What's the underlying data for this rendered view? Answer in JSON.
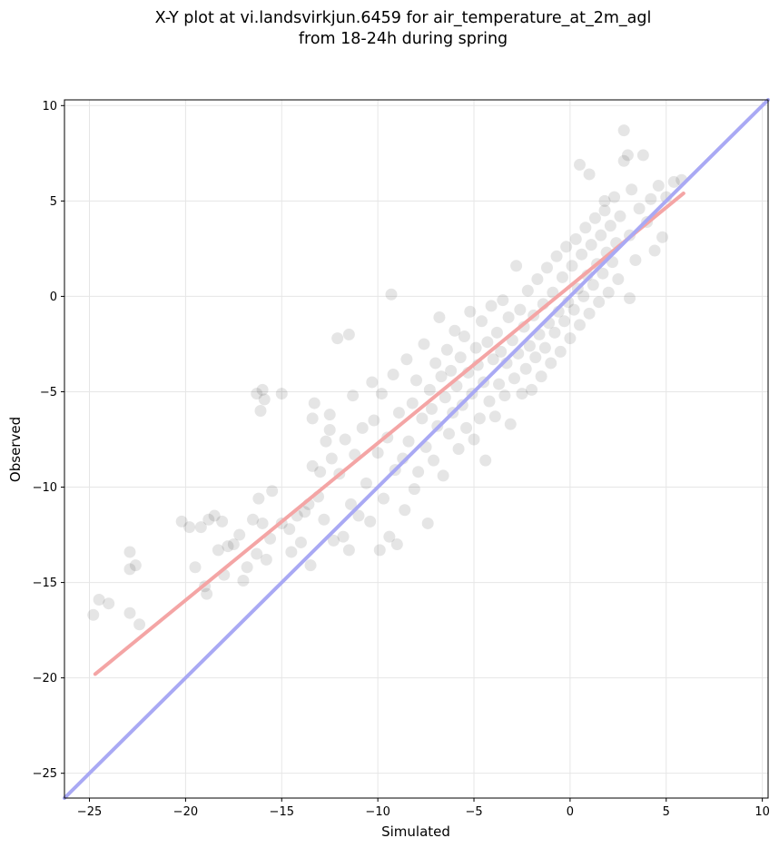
{
  "chart_data": {
    "type": "scatter",
    "title_lines": [
      "X-Y plot at vi.landsvirkjun.6459 for air_temperature_at_2m_agl",
      "from 18-24h during spring"
    ],
    "xlabel": "Simulated",
    "ylabel": "Observed",
    "xlim": [
      -26.3,
      10.3
    ],
    "ylim": [
      -26.3,
      10.3
    ],
    "xticks": [
      -25,
      -20,
      -15,
      -10,
      -5,
      0,
      5,
      10
    ],
    "yticks": [
      -25,
      -20,
      -15,
      -10,
      -5,
      0,
      5,
      10
    ],
    "tick_labels": [
      "−25",
      "−20",
      "−15",
      "−10",
      "−5",
      "0",
      "5",
      "10"
    ],
    "grid": true,
    "series": [
      {
        "kind": "scatter",
        "color": "#000000",
        "points": [
          [
            -24.8,
            -16.7
          ],
          [
            -24.5,
            -15.9
          ],
          [
            -24.0,
            -16.1
          ],
          [
            -22.9,
            -13.4
          ],
          [
            -22.9,
            -14.3
          ],
          [
            -22.9,
            -16.6
          ],
          [
            -22.6,
            -14.1
          ],
          [
            -22.4,
            -17.2
          ],
          [
            -20.2,
            -11.8
          ],
          [
            -19.8,
            -12.1
          ],
          [
            -19.5,
            -14.2
          ],
          [
            -19.2,
            -12.1
          ],
          [
            -19.0,
            -15.2
          ],
          [
            -18.9,
            -15.6
          ],
          [
            -18.8,
            -11.7
          ],
          [
            -18.5,
            -11.5
          ],
          [
            -18.3,
            -13.3
          ],
          [
            -18.1,
            -11.8
          ],
          [
            -18.0,
            -14.6
          ],
          [
            -17.8,
            -13.1
          ],
          [
            -17.5,
            -13.0
          ],
          [
            -17.2,
            -12.5
          ],
          [
            -17.0,
            -14.9
          ],
          [
            -16.8,
            -14.2
          ],
          [
            -16.5,
            -11.7
          ],
          [
            -16.3,
            -13.5
          ],
          [
            -16.2,
            -10.6
          ],
          [
            -16.0,
            -11.9
          ],
          [
            -15.8,
            -13.8
          ],
          [
            -15.6,
            -12.7
          ],
          [
            -15.5,
            -10.2
          ],
          [
            -15.0,
            -11.9
          ],
          [
            -15.0,
            -5.1
          ],
          [
            -16.3,
            -5.1
          ],
          [
            -16.0,
            -4.9
          ],
          [
            -16.1,
            -6.0
          ],
          [
            -15.9,
            -5.4
          ],
          [
            -14.6,
            -12.2
          ],
          [
            -14.5,
            -13.4
          ],
          [
            -14.2,
            -11.5
          ],
          [
            -14.0,
            -12.9
          ],
          [
            -13.8,
            -11.3
          ],
          [
            -13.6,
            -10.9
          ],
          [
            -13.5,
            -14.1
          ],
          [
            -13.4,
            -8.9
          ],
          [
            -13.4,
            -6.4
          ],
          [
            -13.3,
            -5.6
          ],
          [
            -13.1,
            -10.5
          ],
          [
            -13.0,
            -9.2
          ],
          [
            -12.8,
            -11.7
          ],
          [
            -12.7,
            -7.6
          ],
          [
            -12.5,
            -7.0
          ],
          [
            -12.5,
            -6.2
          ],
          [
            -12.4,
            -8.5
          ],
          [
            -12.3,
            -12.8
          ],
          [
            -12.1,
            -2.2
          ],
          [
            -12.0,
            -9.3
          ],
          [
            -11.8,
            -12.6
          ],
          [
            -11.7,
            -7.5
          ],
          [
            -11.5,
            -13.3
          ],
          [
            -11.4,
            -10.9
          ],
          [
            -11.3,
            -5.2
          ],
          [
            -11.2,
            -8.3
          ],
          [
            -11.0,
            -11.5
          ],
          [
            -11.5,
            -2.0
          ],
          [
            -10.8,
            -6.9
          ],
          [
            -10.6,
            -9.8
          ],
          [
            -10.4,
            -11.8
          ],
          [
            -10.3,
            -4.5
          ],
          [
            -10.2,
            -6.5
          ],
          [
            -10.0,
            -8.2
          ],
          [
            -9.9,
            -13.3
          ],
          [
            -9.8,
            -5.1
          ],
          [
            -9.7,
            -10.6
          ],
          [
            -9.5,
            -7.4
          ],
          [
            -9.4,
            -12.6
          ],
          [
            -9.2,
            -4.1
          ],
          [
            -9.1,
            -9.1
          ],
          [
            -9.0,
            -13.0
          ],
          [
            -8.9,
            -6.1
          ],
          [
            -8.7,
            -8.5
          ],
          [
            -8.6,
            -11.2
          ],
          [
            -8.5,
            -3.3
          ],
          [
            -8.4,
            -7.6
          ],
          [
            -8.2,
            -5.6
          ],
          [
            -8.1,
            -10.1
          ],
          [
            -8.0,
            -4.4
          ],
          [
            -7.9,
            -9.2
          ],
          [
            -7.7,
            -6.4
          ],
          [
            -7.6,
            -2.5
          ],
          [
            -7.5,
            -7.9
          ],
          [
            -7.4,
            -11.9
          ],
          [
            -7.3,
            -4.9
          ],
          [
            -7.2,
            -5.9
          ],
          [
            -7.1,
            -8.6
          ],
          [
            -7.0,
            -3.5
          ],
          [
            -6.9,
            -6.8
          ],
          [
            -6.8,
            -1.1
          ],
          [
            -6.7,
            -4.2
          ],
          [
            -6.6,
            -9.4
          ],
          [
            -6.5,
            -5.3
          ],
          [
            -6.4,
            -2.8
          ],
          [
            -6.3,
            -7.2
          ],
          [
            -6.2,
            -3.9
          ],
          [
            -6.1,
            -6.1
          ],
          [
            -6.0,
            -1.8
          ],
          [
            -5.9,
            -4.7
          ],
          [
            -5.8,
            -8.0
          ],
          [
            -5.7,
            -3.2
          ],
          [
            -5.6,
            -5.7
          ],
          [
            -5.5,
            -2.1
          ],
          [
            -5.4,
            -6.9
          ],
          [
            -5.3,
            -4.0
          ],
          [
            -5.2,
            -0.8
          ],
          [
            -5.1,
            -5.1
          ],
          [
            -5.0,
            -7.5
          ],
          [
            -4.9,
            -2.7
          ],
          [
            -4.8,
            -3.6
          ],
          [
            -4.7,
            -6.4
          ],
          [
            -4.6,
            -1.3
          ],
          [
            -4.5,
            -4.5
          ],
          [
            -4.4,
            -8.6
          ],
          [
            -4.3,
            -2.4
          ],
          [
            -4.2,
            -5.5
          ],
          [
            -4.1,
            -0.5
          ],
          [
            -4.0,
            -3.3
          ],
          [
            -3.9,
            -6.3
          ],
          [
            -3.8,
            -1.9
          ],
          [
            -3.7,
            -4.6
          ],
          [
            -3.6,
            -2.9
          ],
          [
            -3.5,
            -0.2
          ],
          [
            -3.4,
            -5.2
          ],
          [
            -3.3,
            -3.5
          ],
          [
            -3.2,
            -1.1
          ],
          [
            -3.1,
            -6.7
          ],
          [
            -3.0,
            -2.3
          ],
          [
            -2.9,
            -4.3
          ],
          [
            -2.8,
            1.6
          ],
          [
            -2.7,
            -3.0
          ],
          [
            -2.6,
            -0.7
          ],
          [
            -2.5,
            -5.1
          ],
          [
            -2.4,
            -1.6
          ],
          [
            -2.3,
            -3.8
          ],
          [
            -2.2,
            0.3
          ],
          [
            -2.1,
            -2.6
          ],
          [
            -2.0,
            -4.9
          ],
          [
            -1.9,
            -1.0
          ],
          [
            -1.8,
            -3.2
          ],
          [
            -1.7,
            0.9
          ],
          [
            -1.6,
            -2.0
          ],
          [
            -1.5,
            -4.2
          ],
          [
            -1.4,
            -0.4
          ],
          [
            -1.3,
            -2.7
          ],
          [
            -1.2,
            1.5
          ],
          [
            -1.1,
            -1.4
          ],
          [
            -1.0,
            -3.5
          ],
          [
            -0.9,
            0.2
          ],
          [
            -0.8,
            -1.9
          ],
          [
            -0.7,
            2.1
          ],
          [
            -0.6,
            -0.8
          ],
          [
            -0.5,
            -2.9
          ],
          [
            -0.4,
            1.0
          ],
          [
            -0.3,
            -1.3
          ],
          [
            -0.2,
            2.6
          ],
          [
            -0.1,
            -0.3
          ],
          [
            0.0,
            -2.2
          ],
          [
            0.1,
            1.6
          ],
          [
            0.2,
            -0.7
          ],
          [
            0.3,
            3.0
          ],
          [
            0.4,
            0.4
          ],
          [
            0.5,
            -1.5
          ],
          [
            0.6,
            2.2
          ],
          [
            0.7,
            0.0
          ],
          [
            0.8,
            3.6
          ],
          [
            0.9,
            1.1
          ],
          [
            1.0,
            -0.9
          ],
          [
            1.1,
            2.7
          ],
          [
            1.2,
            0.6
          ],
          [
            1.3,
            4.1
          ],
          [
            1.4,
            1.7
          ],
          [
            1.5,
            -0.3
          ],
          [
            1.6,
            3.2
          ],
          [
            1.7,
            1.2
          ],
          [
            1.8,
            4.5
          ],
          [
            1.9,
            2.3
          ],
          [
            2.0,
            0.2
          ],
          [
            2.1,
            3.7
          ],
          [
            2.2,
            1.8
          ],
          [
            2.3,
            5.2
          ],
          [
            2.4,
            2.8
          ],
          [
            2.5,
            0.9
          ],
          [
            2.6,
            4.2
          ],
          [
            2.8,
            8.7
          ],
          [
            2.8,
            7.1
          ],
          [
            3.0,
            7.4
          ],
          [
            3.1,
            3.2
          ],
          [
            3.2,
            5.6
          ],
          [
            3.4,
            1.9
          ],
          [
            3.6,
            4.6
          ],
          [
            3.8,
            7.4
          ],
          [
            4.0,
            3.9
          ],
          [
            4.2,
            5.1
          ],
          [
            4.4,
            2.4
          ],
          [
            4.6,
            5.8
          ],
          [
            4.8,
            3.1
          ],
          [
            5.0,
            5.2
          ],
          [
            5.4,
            6.0
          ],
          [
            5.8,
            6.1
          ],
          [
            3.1,
            -0.1
          ],
          [
            0.5,
            6.9
          ],
          [
            1.0,
            6.4
          ],
          [
            1.8,
            5.0
          ],
          [
            -9.3,
            0.1
          ]
        ]
      },
      {
        "kind": "line",
        "name": "",
        "color": "#f4a5a5",
        "points": [
          [
            -24.7,
            -19.8
          ],
          [
            5.9,
            5.4
          ]
        ]
      },
      {
        "kind": "line",
        "name": "",
        "color": "#a9a9f4",
        "points": [
          [
            -26.3,
            -26.3
          ],
          [
            10.3,
            10.3
          ]
        ]
      }
    ]
  }
}
